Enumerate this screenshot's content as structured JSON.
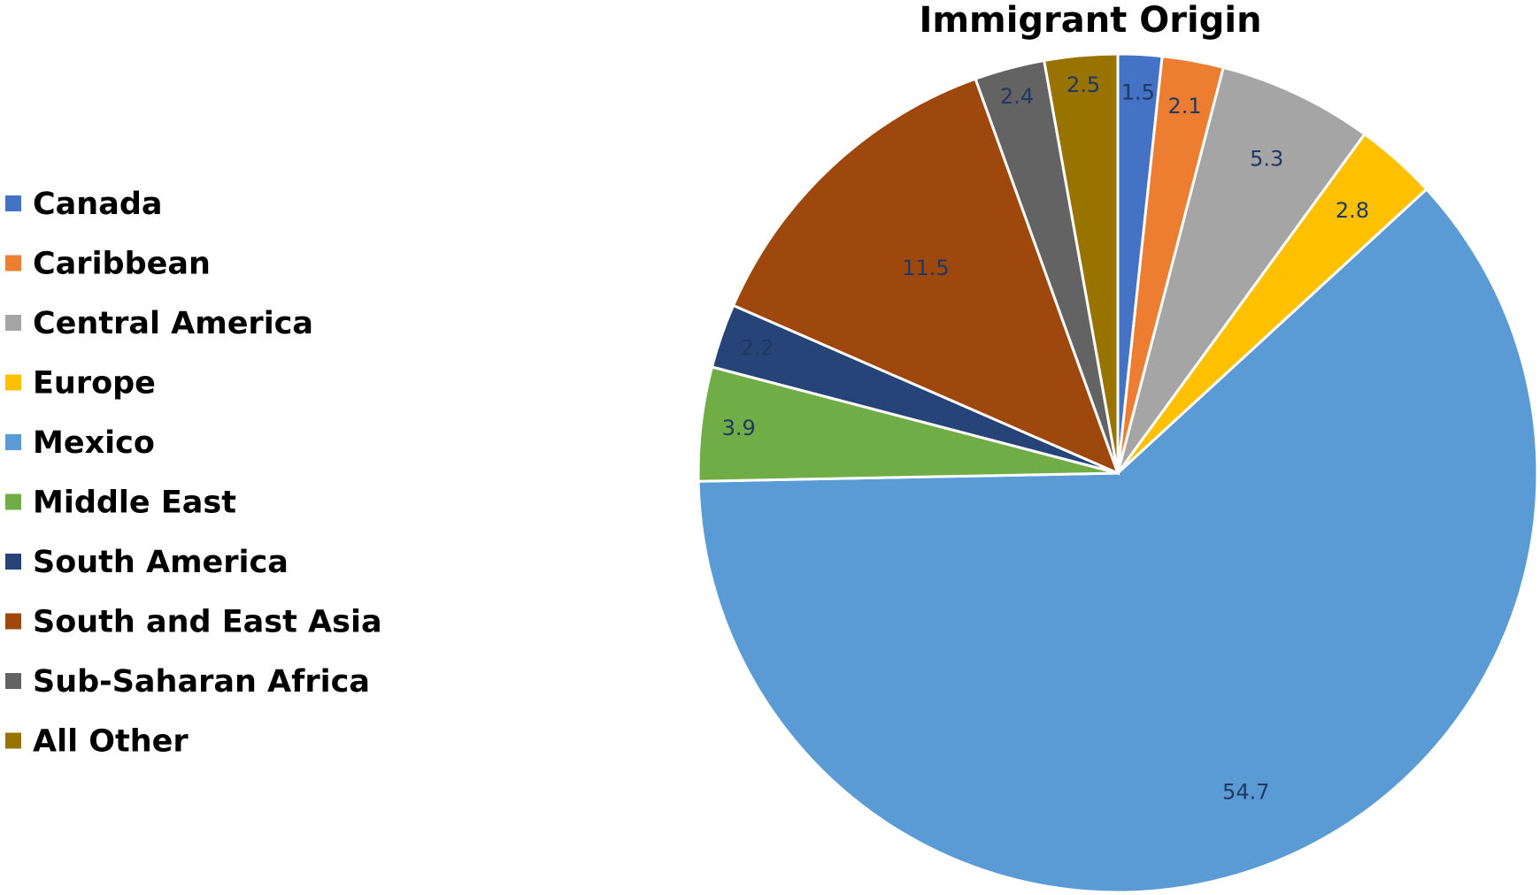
{
  "chart_data": {
    "type": "pie",
    "title": "Immigrant Origin",
    "legend_position": "left",
    "categories": [
      "Canada",
      "Caribbean",
      "Central America",
      "Europe",
      "Mexico",
      "Middle East",
      "South America",
      "South and East Asia",
      "Sub-Saharan Africa",
      "All Other"
    ],
    "values": [
      1.5,
      2.1,
      5.3,
      2.8,
      54.7,
      3.9,
      2.2,
      11.5,
      2.4,
      2.5
    ],
    "data_labels": [
      "1.5",
      "2.1",
      "5.3",
      "2.8",
      "54.7",
      "3.9",
      "2.2",
      "11.5",
      "2.4",
      "2.5"
    ],
    "colors": [
      "#4472c4",
      "#ed7d31",
      "#a5a5a5",
      "#ffc000",
      "#5b9bd5",
      "#70ad47",
      "#264478",
      "#9e480e",
      "#636363",
      "#997300"
    ],
    "start_angle_deg": 0,
    "direction": "clockwise"
  }
}
